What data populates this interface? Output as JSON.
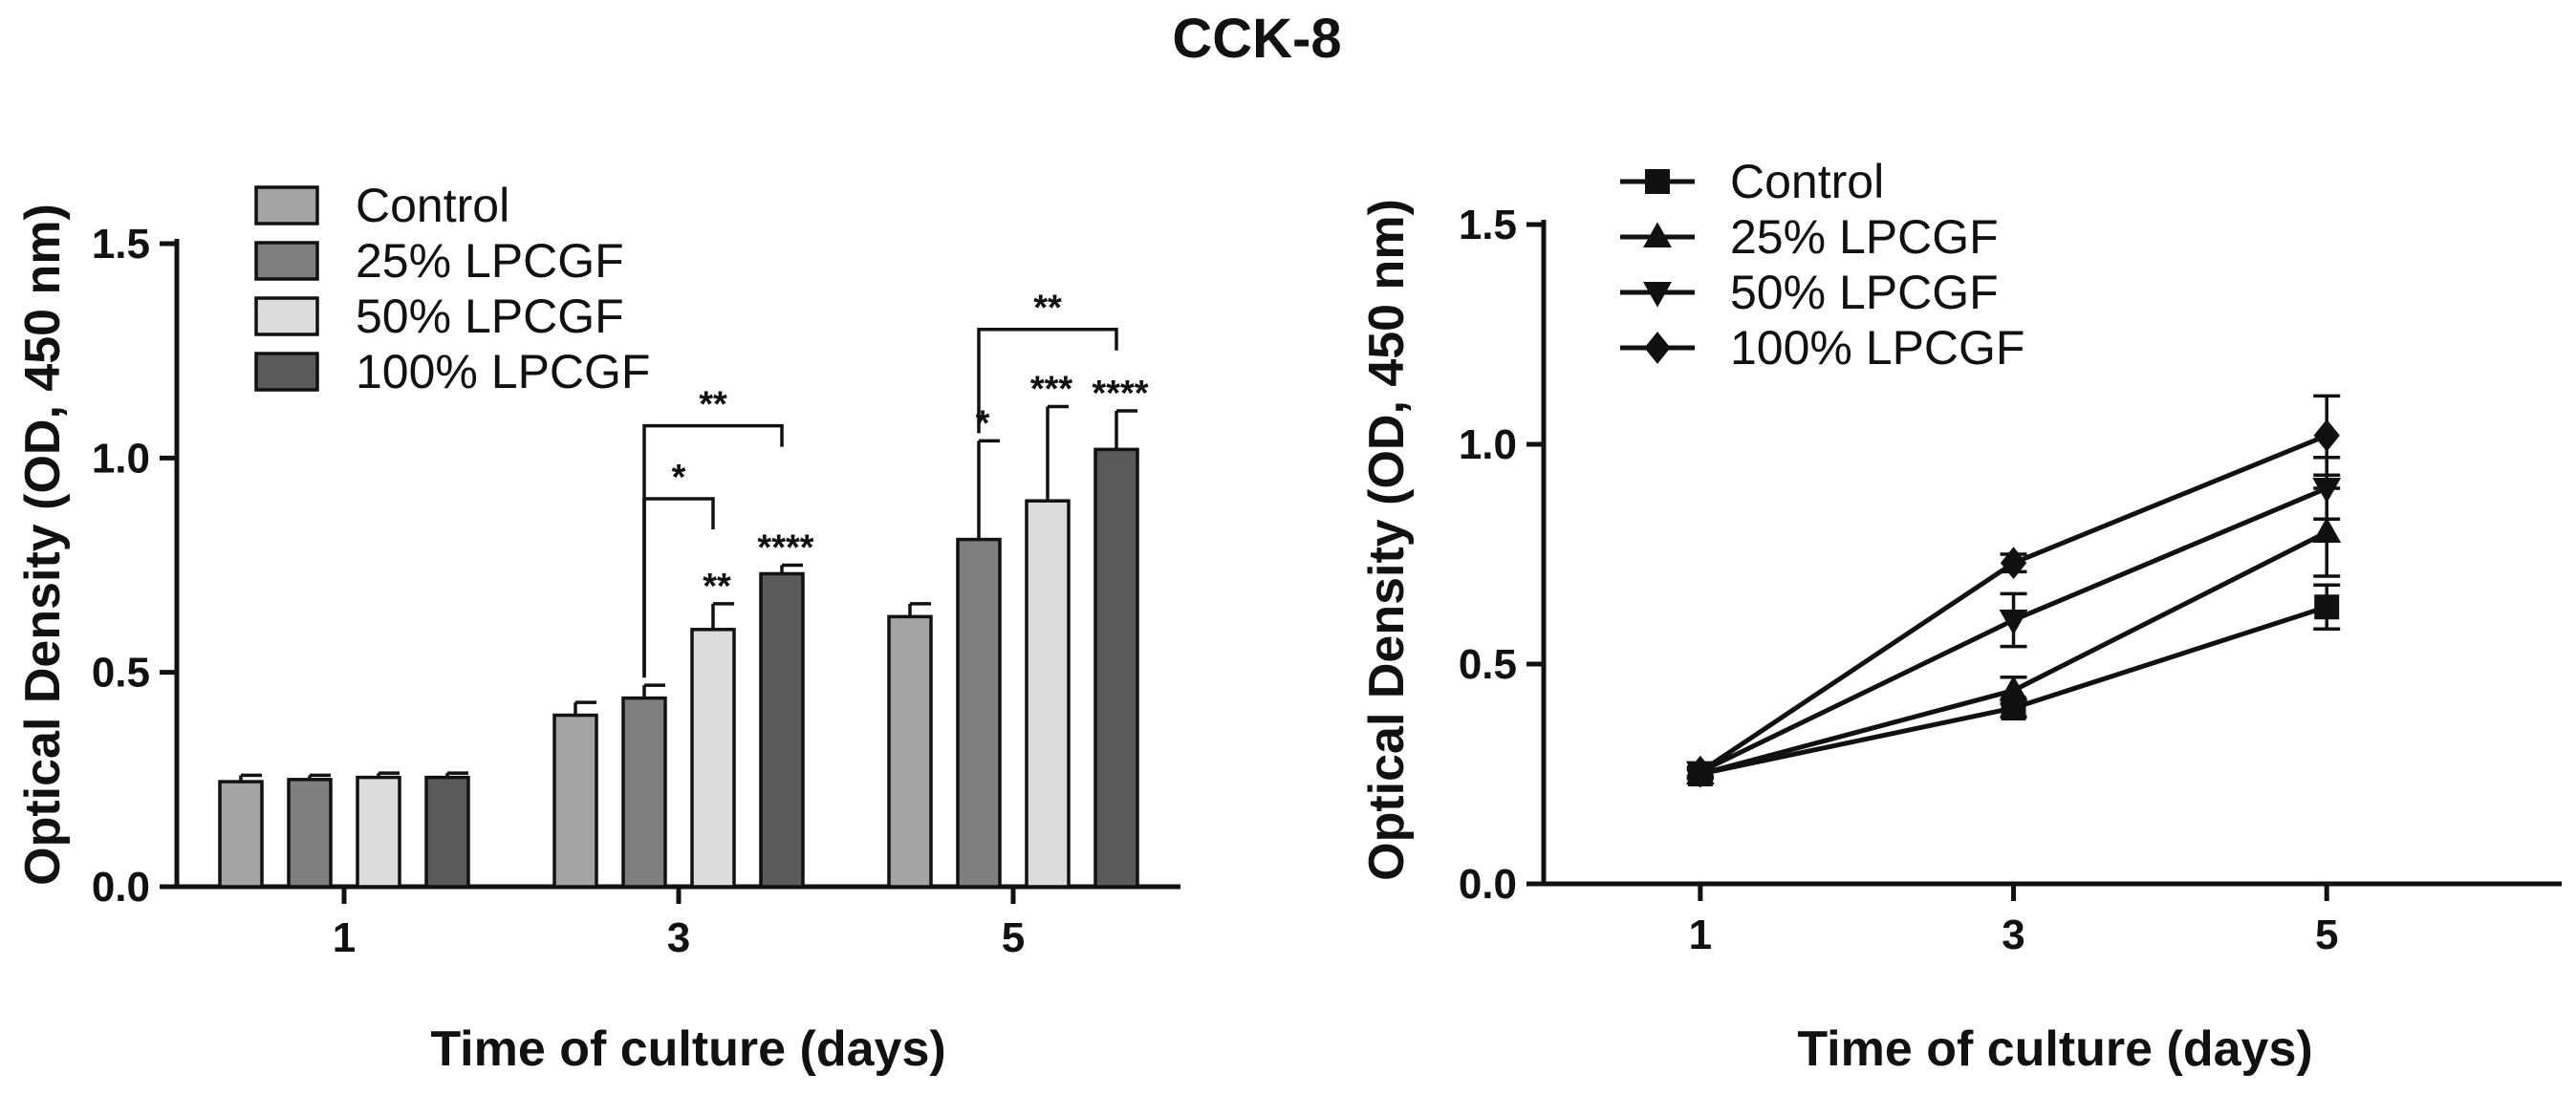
{
  "title": "CCK-8",
  "colors": {
    "control": "#a4a4a4",
    "lpcgf25": "#7f7f7f",
    "lpcgf50": "#dcdcdc",
    "lpcgf100": "#5a5a5a",
    "axis": "#111111"
  },
  "chart_data": [
    {
      "type": "bar",
      "title": "CCK-8",
      "xlabel": "Time of culture (days)",
      "ylabel": "Optical Density (OD, 450 nm)",
      "ylim": [
        0,
        1.5
      ],
      "yticks": [
        "0.0",
        "0.5",
        "1.0",
        "1.5"
      ],
      "yticks_values": [
        0,
        0.5,
        1.0,
        1.5
      ],
      "categories": [
        "1",
        "3",
        "5"
      ],
      "legend_position": "top-left",
      "series": [
        {
          "name": "Control",
          "color_key": "control",
          "values": [
            0.245,
            0.4,
            0.63
          ],
          "errors": [
            0.015,
            0.03,
            0.03
          ]
        },
        {
          "name": "25% LPCGF",
          "color_key": "lpcgf25",
          "values": [
            0.25,
            0.44,
            0.81
          ],
          "errors": [
            0.01,
            0.03,
            0.23
          ]
        },
        {
          "name": "50% LPCGF",
          "color_key": "lpcgf50",
          "values": [
            0.255,
            0.6,
            0.9
          ],
          "errors": [
            0.01,
            0.06,
            0.22
          ]
        },
        {
          "name": "100% LPCGF",
          "color_key": "lpcgf100",
          "values": [
            0.255,
            0.73,
            1.02
          ],
          "errors": [
            0.01,
            0.02,
            0.09
          ]
        }
      ],
      "significance_above_bars": [
        {
          "category": "3",
          "series": "50% LPCGF",
          "label": "**"
        },
        {
          "category": "3",
          "series": "100% LPCGF",
          "label": "****"
        },
        {
          "category": "5",
          "series": "25% LPCGF",
          "label": "*"
        },
        {
          "category": "5",
          "series": "50% LPCGF",
          "label": "***"
        },
        {
          "category": "5",
          "series": "100% LPCGF",
          "label": "****"
        }
      ],
      "significance_brackets": [
        {
          "category": "3",
          "from": "25% LPCGF",
          "to": "50% LPCGF",
          "label": "*"
        },
        {
          "category": "3",
          "from": "25% LPCGF",
          "to": "100% LPCGF",
          "label": "**"
        },
        {
          "category": "5",
          "from": "25% LPCGF",
          "to": "100% LPCGF",
          "label": "**"
        }
      ]
    },
    {
      "type": "line",
      "xlabel": "Time of culture (days)",
      "ylabel": "Optical Density (OD, 450 nm)",
      "ylim": [
        0,
        1.5
      ],
      "yticks": [
        "0.0",
        "0.5",
        "1.0",
        "1.5"
      ],
      "yticks_values": [
        0,
        0.5,
        1.0,
        1.5
      ],
      "x": [
        1,
        3,
        5
      ],
      "xticks": [
        "1",
        "3",
        "5"
      ],
      "xlim": [
        0,
        6.5
      ],
      "legend_position": "top-left",
      "series": [
        {
          "name": "Control",
          "marker": "square",
          "values": [
            0.25,
            0.4,
            0.63
          ],
          "errors": [
            0.01,
            0.02,
            0.05
          ]
        },
        {
          "name": "25% LPCGF",
          "marker": "triangle-up",
          "values": [
            0.25,
            0.44,
            0.8
          ],
          "errors": [
            0.01,
            0.03,
            0.1
          ]
        },
        {
          "name": "50% LPCGF",
          "marker": "triangle-down",
          "values": [
            0.255,
            0.6,
            0.9
          ],
          "errors": [
            0.01,
            0.06,
            0.07
          ]
        },
        {
          "name": "100% LPCGF",
          "marker": "diamond",
          "values": [
            0.255,
            0.73,
            1.02
          ],
          "errors": [
            0.01,
            0.02,
            0.09
          ]
        }
      ]
    }
  ]
}
